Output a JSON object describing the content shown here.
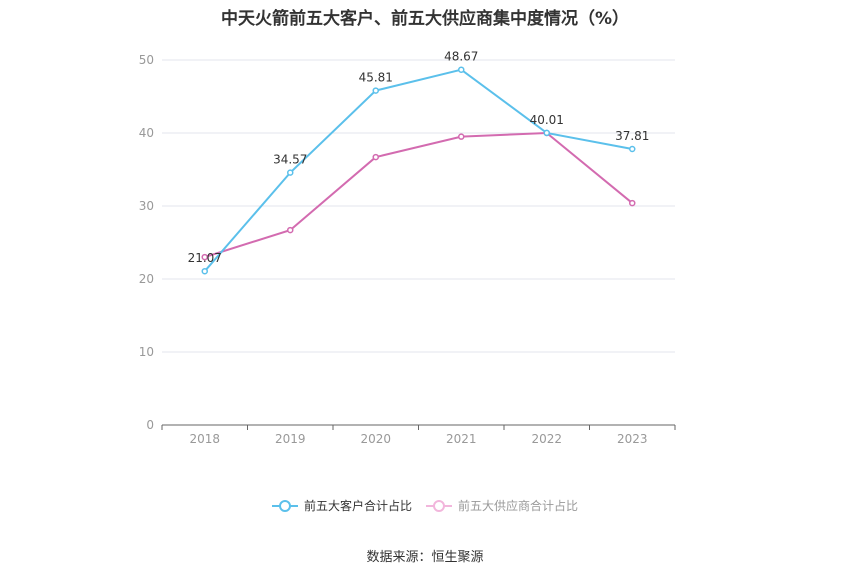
{
  "chart_data": {
    "type": "line",
    "title": "中天火箭前五大客户、前五大供应商集中度情况（%）",
    "categories": [
      "2018",
      "2019",
      "2020",
      "2021",
      "2022",
      "2023"
    ],
    "ylim": [
      0,
      50
    ],
    "yticks": [
      0,
      10,
      20,
      30,
      40,
      50
    ],
    "grid": true,
    "legend_position": "bottom",
    "series": [
      {
        "name": "前五大客户合计占比",
        "color": "#5bc0eb",
        "values": [
          21.07,
          34.57,
          45.81,
          48.67,
          40.01,
          37.81
        ],
        "labels": [
          "21.07",
          "34.57",
          "45.81",
          "48.67",
          "40.01",
          "37.81"
        ]
      },
      {
        "name": "前五大供应商合计占比",
        "color": "#d36bb0",
        "values": [
          23.0,
          26.7,
          36.7,
          39.5,
          40.0,
          30.4
        ],
        "labels": null
      }
    ]
  },
  "source": "数据来源：恒生聚源"
}
